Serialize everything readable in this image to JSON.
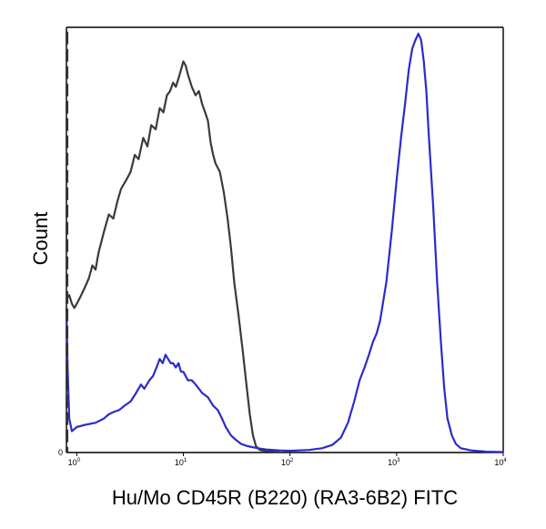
{
  "chart_data": {
    "type": "line",
    "title": "",
    "xlabel": "Hu/Mo CD45R (B220) (RA3-6B2) FITC",
    "ylabel": "Count",
    "x_scale": "log",
    "xlim": [
      0.8,
      10000
    ],
    "ylim": [
      0,
      100
    ],
    "grid": false,
    "legend": "none",
    "x_ticks": [
      {
        "base": "10",
        "exp": "0",
        "value": 1
      },
      {
        "base": "10",
        "exp": "1",
        "value": 10
      },
      {
        "base": "10",
        "exp": "2",
        "value": 100
      },
      {
        "base": "10",
        "exp": "3",
        "value": 1000
      },
      {
        "base": "10",
        "exp": "4",
        "value": 10000
      }
    ],
    "y_ticks": [
      {
        "label": "0",
        "value": 0
      }
    ],
    "series": [
      {
        "color": "#3a3a3a",
        "style": "solid",
        "points": [
          [
            0.8,
            36
          ],
          [
            0.85,
            37
          ],
          [
            0.9,
            35
          ],
          [
            0.95,
            34
          ],
          [
            1.0,
            35
          ],
          [
            1.1,
            37
          ],
          [
            1.2,
            39
          ],
          [
            1.3,
            41
          ],
          [
            1.4,
            44
          ],
          [
            1.5,
            43
          ],
          [
            1.6,
            47
          ],
          [
            1.8,
            52
          ],
          [
            2.0,
            56
          ],
          [
            2.2,
            55
          ],
          [
            2.4,
            59
          ],
          [
            2.6,
            62
          ],
          [
            2.9,
            64
          ],
          [
            3.2,
            66
          ],
          [
            3.5,
            70
          ],
          [
            3.8,
            69
          ],
          [
            4.2,
            74
          ],
          [
            4.6,
            72
          ],
          [
            5.0,
            77
          ],
          [
            5.5,
            76
          ],
          [
            6.0,
            81
          ],
          [
            6.5,
            80
          ],
          [
            7.0,
            84
          ],
          [
            7.5,
            85
          ],
          [
            8.0,
            87
          ],
          [
            8.5,
            86
          ],
          [
            9.0,
            88
          ],
          [
            9.5,
            90
          ],
          [
            10.0,
            92
          ],
          [
            10.5,
            91
          ],
          [
            11.0,
            89
          ],
          [
            12.0,
            86
          ],
          [
            13.0,
            84
          ],
          [
            14.0,
            85
          ],
          [
            15.0,
            82
          ],
          [
            16.0,
            80
          ],
          [
            17.0,
            78
          ],
          [
            18.0,
            73
          ],
          [
            19.0,
            70
          ],
          [
            20.0,
            68
          ],
          [
            22.0,
            66
          ],
          [
            24.0,
            61
          ],
          [
            26.0,
            55
          ],
          [
            28.0,
            48
          ],
          [
            30.0,
            40
          ],
          [
            33.0,
            32
          ],
          [
            36.0,
            24
          ],
          [
            39.0,
            16
          ],
          [
            42.0,
            9
          ],
          [
            45.0,
            4
          ],
          [
            48.0,
            1.5
          ],
          [
            52.0,
            0.6
          ],
          [
            60.0,
            0.3
          ],
          [
            80.0,
            0.2
          ]
        ]
      },
      {
        "color": "#2b2bcc",
        "style": "solid",
        "points": [
          [
            0.8,
            34
          ],
          [
            0.82,
            20
          ],
          [
            0.85,
            8
          ],
          [
            0.9,
            5
          ],
          [
            1.0,
            6
          ],
          [
            1.2,
            6.5
          ],
          [
            1.5,
            7
          ],
          [
            1.8,
            8
          ],
          [
            2.0,
            9
          ],
          [
            2.2,
            9.5
          ],
          [
            2.5,
            10
          ],
          [
            2.8,
            11
          ],
          [
            3.2,
            12
          ],
          [
            3.6,
            14
          ],
          [
            4.0,
            16
          ],
          [
            4.3,
            15
          ],
          [
            4.8,
            17
          ],
          [
            5.2,
            18
          ],
          [
            5.6,
            20
          ],
          [
            6.0,
            22
          ],
          [
            6.4,
            21
          ],
          [
            6.8,
            23
          ],
          [
            7.2,
            22
          ],
          [
            7.6,
            21
          ],
          [
            8.0,
            21
          ],
          [
            8.5,
            20
          ],
          [
            9.0,
            21
          ],
          [
            9.5,
            19
          ],
          [
            10.0,
            19
          ],
          [
            11.0,
            17
          ],
          [
            12.0,
            17
          ],
          [
            13.0,
            16
          ],
          [
            14.0,
            15
          ],
          [
            15.0,
            14
          ],
          [
            17.0,
            13
          ],
          [
            19.0,
            11
          ],
          [
            21.0,
            10
          ],
          [
            23.0,
            8
          ],
          [
            25.0,
            6
          ],
          [
            28.0,
            4
          ],
          [
            31.0,
            3
          ],
          [
            35.0,
            2
          ],
          [
            40.0,
            1.5
          ],
          [
            50.0,
            1
          ],
          [
            60.0,
            0.7
          ],
          [
            80.0,
            0.5
          ],
          [
            100.0,
            0.4
          ],
          [
            150.0,
            0.6
          ],
          [
            200.0,
            1
          ],
          [
            250.0,
            1.8
          ],
          [
            300.0,
            3.5
          ],
          [
            350.0,
            7
          ],
          [
            400.0,
            12
          ],
          [
            450.0,
            17
          ],
          [
            500.0,
            20
          ],
          [
            550.0,
            23
          ],
          [
            600.0,
            26
          ],
          [
            650.0,
            28
          ],
          [
            700.0,
            31
          ],
          [
            800.0,
            40
          ],
          [
            900.0,
            52
          ],
          [
            1000.0,
            64
          ],
          [
            1100.0,
            74
          ],
          [
            1200.0,
            82
          ],
          [
            1300.0,
            90
          ],
          [
            1400.0,
            95
          ],
          [
            1500.0,
            97
          ],
          [
            1600.0,
            98.5
          ],
          [
            1700.0,
            97
          ],
          [
            1800.0,
            92
          ],
          [
            1900.0,
            85
          ],
          [
            2000.0,
            75
          ],
          [
            2200.0,
            58
          ],
          [
            2400.0,
            40
          ],
          [
            2600.0,
            26
          ],
          [
            2800.0,
            15
          ],
          [
            3000.0,
            8
          ],
          [
            3300.0,
            4
          ],
          [
            3600.0,
            2
          ],
          [
            4000.0,
            1
          ],
          [
            5000.0,
            0.5
          ],
          [
            7000.0,
            0.2
          ],
          [
            10000.0,
            0.1
          ]
        ]
      },
      {
        "color": "#333333",
        "style": "dashed",
        "points": [
          [
            0.81,
            99
          ],
          [
            0.81,
            80
          ],
          [
            0.81,
            60
          ],
          [
            0.81,
            40
          ],
          [
            0.81,
            20
          ],
          [
            0.81,
            0
          ]
        ]
      }
    ]
  }
}
